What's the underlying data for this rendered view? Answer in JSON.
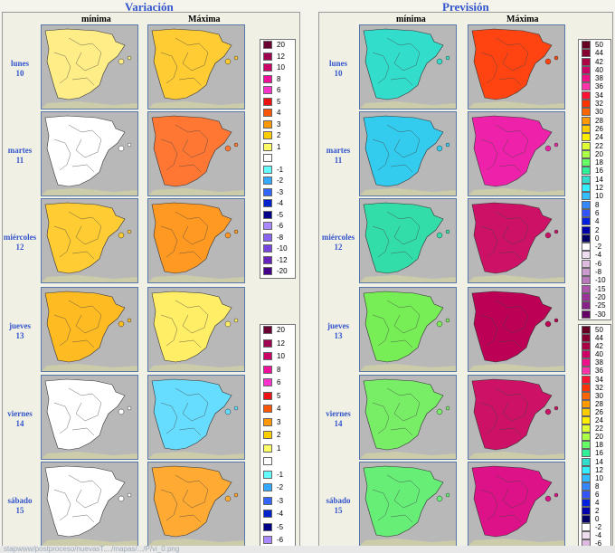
{
  "left_title": "Variación",
  "right_title": "Previsión",
  "col_min": "mínima",
  "col_max": "Máxima",
  "days": [
    {
      "name": "lunes",
      "num": "10"
    },
    {
      "name": "martes",
      "num": "11"
    },
    {
      "name": "miércoles",
      "num": "12"
    },
    {
      "name": "jueves",
      "num": "13"
    },
    {
      "name": "viernes",
      "num": "14"
    },
    {
      "name": "sábado",
      "num": "15"
    }
  ],
  "variation_scale": [
    {
      "label": "20",
      "color": "#6b0033"
    },
    {
      "label": "12",
      "color": "#a00050"
    },
    {
      "label": "10",
      "color": "#cc0066"
    },
    {
      "label": "8",
      "color": "#ee1199"
    },
    {
      "label": "6",
      "color": "#ff33cc"
    },
    {
      "label": "5",
      "color": "#ee1111"
    },
    {
      "label": "4",
      "color": "#ff5500"
    },
    {
      "label": "3",
      "color": "#ff9900"
    },
    {
      "label": "2",
      "color": "#ffcc00"
    },
    {
      "label": "1",
      "color": "#ffff66"
    },
    {
      "label": "",
      "color": "#ffffff"
    },
    {
      "label": "-1",
      "color": "#66ffff"
    },
    {
      "label": "-2",
      "color": "#33aaff"
    },
    {
      "label": "-3",
      "color": "#3366ff"
    },
    {
      "label": "-4",
      "color": "#0022cc"
    },
    {
      "label": "-5",
      "color": "#000088"
    },
    {
      "label": "-6",
      "color": "#aa88ff"
    },
    {
      "label": "-8",
      "color": "#8866ee"
    },
    {
      "label": "-10",
      "color": "#7744dd"
    },
    {
      "label": "-12",
      "color": "#6622bb"
    },
    {
      "label": "-20",
      "color": "#440088"
    }
  ],
  "variation_scale_b": [
    "20",
    "12",
    "10",
    "8",
    "6",
    "5",
    "4",
    "3",
    "2",
    "1",
    "",
    "-1",
    "-2",
    "-3",
    "-4",
    "-5",
    "-6"
  ],
  "forecast_scale": [
    {
      "label": "50",
      "color": "#660022"
    },
    {
      "label": "44",
      "color": "#880033"
    },
    {
      "label": "42",
      "color": "#aa0044"
    },
    {
      "label": "40",
      "color": "#cc0066"
    },
    {
      "label": "38",
      "color": "#ee1188"
    },
    {
      "label": "36",
      "color": "#ff33aa"
    },
    {
      "label": "34",
      "color": "#ff1133"
    },
    {
      "label": "32",
      "color": "#ff3300"
    },
    {
      "label": "30",
      "color": "#ff6600"
    },
    {
      "label": "28",
      "color": "#ff9900"
    },
    {
      "label": "26",
      "color": "#ffcc00"
    },
    {
      "label": "24",
      "color": "#ffee00"
    },
    {
      "label": "22",
      "color": "#ddff33"
    },
    {
      "label": "20",
      "color": "#aaff44"
    },
    {
      "label": "18",
      "color": "#66ff66"
    },
    {
      "label": "16",
      "color": "#33ee99"
    },
    {
      "label": "14",
      "color": "#33ddcc"
    },
    {
      "label": "12",
      "color": "#33eeff"
    },
    {
      "label": "10",
      "color": "#33bbff"
    },
    {
      "label": "8",
      "color": "#3388ff"
    },
    {
      "label": "6",
      "color": "#3355ff"
    },
    {
      "label": "4",
      "color": "#0022dd"
    },
    {
      "label": "2",
      "color": "#0000aa"
    },
    {
      "label": "0",
      "color": "#000066"
    },
    {
      "label": "-2",
      "color": "#ffffff"
    },
    {
      "label": "-4",
      "color": "#eeddee"
    },
    {
      "label": "-6",
      "color": "#ddbbdd"
    },
    {
      "label": "-8",
      "color": "#cc99cc"
    },
    {
      "label": "-10",
      "color": "#bb77bb"
    },
    {
      "label": "-15",
      "color": "#aa55aa"
    },
    {
      "label": "-20",
      "color": "#993399"
    },
    {
      "label": "-25",
      "color": "#882288"
    },
    {
      "label": "-30",
      "color": "#660066"
    }
  ],
  "forecast_scale_b": [
    "50",
    "44",
    "42",
    "40",
    "38",
    "36",
    "34",
    "32",
    "30",
    "28",
    "26",
    "24",
    "22",
    "20",
    "18",
    "16",
    "14",
    "12",
    "10",
    "8",
    "6",
    "4",
    "2",
    "0",
    "-2",
    "-4",
    "-6"
  ],
  "map_colors": {
    "var_min": [
      "#ffee88",
      "#ffffff",
      "#ffcc33",
      "#ffbb22",
      "#ffffff",
      "#ffffff"
    ],
    "var_max": [
      "#ffcc33",
      "#ff7733",
      "#ff9922",
      "#ffee66",
      "#66ddff",
      "#ffaa33"
    ],
    "fc_min": [
      "#33ddcc",
      "#33ccee",
      "#33ddaa",
      "#77ee55",
      "#77ee66",
      "#66ee77"
    ],
    "fc_max": [
      "#ff4411",
      "#ee22aa",
      "#cc1166",
      "#bb0055",
      "#cc1166",
      "#dd1188"
    ]
  },
  "url_text": "stapwww/postproceso/nuevasT..../mapas/.../P/vi_0.png"
}
